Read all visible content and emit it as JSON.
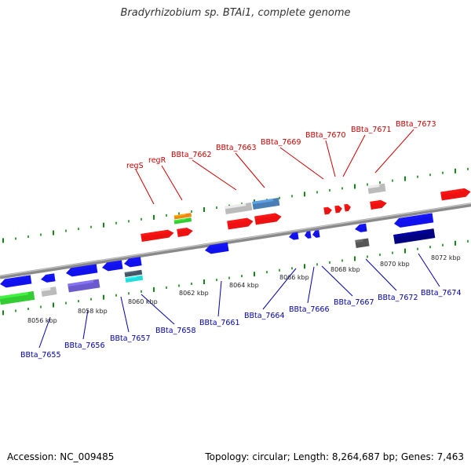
{
  "title": "Bradyrhizobium sp. BTAi1, complete genome",
  "accession": "Accession: NC_009485",
  "topology": "Topology: circular; Length: 8,264,687 bp; Genes: 7,463",
  "colors": {
    "forward_label": "#cc0000",
    "reverse_label": "#0000aa",
    "tick": "#118811",
    "backbone": "#8a8a8a"
  },
  "axis": {
    "unit": "kbp",
    "ticks": [
      {
        "label": "8056 kbp"
      },
      {
        "label": "8058 kbp"
      },
      {
        "label": "8060 kbp"
      },
      {
        "label": "8062 kbp"
      },
      {
        "label": "8064 kbp"
      },
      {
        "label": "8066 kbp"
      },
      {
        "label": "8068 kbp"
      },
      {
        "label": "8070 kbp"
      },
      {
        "label": "8072 kbp"
      }
    ]
  },
  "forward_labels": [
    "regS",
    "regR",
    "BBta_7662",
    "BBta_7663",
    "BBta_7669",
    "BBta_7670",
    "BBta_7671",
    "BBta_7673"
  ],
  "reverse_labels": [
    "BBta_7655",
    "BBta_7656",
    "BBta_7657",
    "BBta_7658",
    "BBta_7661",
    "BBta_7664",
    "BBta_7666",
    "BBta_7667",
    "BBta_7672",
    "BBta_7674"
  ],
  "feature_colors": {
    "forward": "#ee1111",
    "reverse": "#1111ee",
    "grey": "#bbbbbb",
    "steel": "#4a7fb5",
    "orange": "#ee8811",
    "green": "#33cc33",
    "purple": "#6a5acd",
    "cyan": "#22dddd",
    "navy": "#000080",
    "darkgrey": "#555555",
    "slate": "#445566"
  }
}
